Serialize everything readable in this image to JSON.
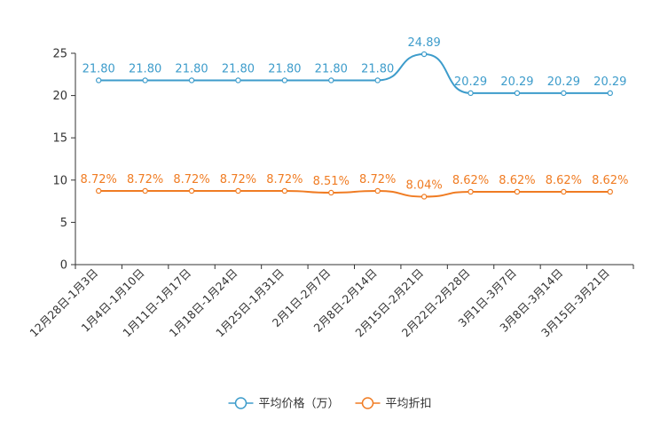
{
  "chart_data": {
    "type": "line",
    "title": "",
    "xlabel": "",
    "ylabel": "",
    "ylim": [
      0,
      25
    ],
    "yticks": [
      "0",
      "5",
      "10",
      "15",
      "20",
      "25"
    ],
    "categories": [
      "12月28日-1月3日",
      "1月4日-1月10日",
      "1月11日-1月17日",
      "1月18日-1月24日",
      "1月25日-1月31日",
      "2月1日-2月7日",
      "2月8日-2月14日",
      "2月15日-2月21日",
      "2月22日-2月28日",
      "3月1日-3月7日",
      "3月8日-3月14日",
      "3月15日-3月21日"
    ],
    "series": [
      {
        "name": "平均价格（万）",
        "color": "#3d9ccb",
        "values": [
          21.8,
          21.8,
          21.8,
          21.8,
          21.8,
          21.8,
          21.8,
          24.89,
          20.29,
          20.29,
          20.29,
          20.29
        ],
        "labels": [
          "21.80",
          "21.80",
          "21.80",
          "21.80",
          "21.80",
          "21.80",
          "21.80",
          "24.89",
          "20.29",
          "20.29",
          "20.29",
          "20.29"
        ]
      },
      {
        "name": "平均折扣",
        "color": "#f07c23",
        "values": [
          8.72,
          8.72,
          8.72,
          8.72,
          8.72,
          8.51,
          8.72,
          8.04,
          8.62,
          8.62,
          8.62,
          8.62
        ],
        "labels": [
          "8.72%",
          "8.72%",
          "8.72%",
          "8.72%",
          "8.72%",
          "8.51%",
          "8.72%",
          "8.04%",
          "8.62%",
          "8.62%",
          "8.62%",
          "8.62%"
        ]
      }
    ],
    "legend_position": "bottom-center"
  }
}
